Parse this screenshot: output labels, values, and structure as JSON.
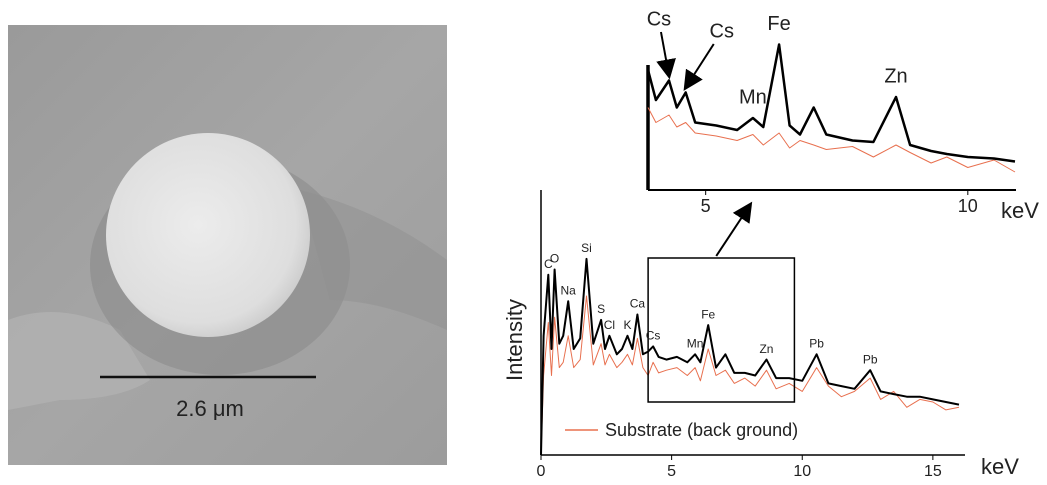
{
  "image": {
    "scale_bar_label": "2.6 μm"
  },
  "chart_data": [
    {
      "type": "line",
      "y_label": "Intensity",
      "x_label": "keV",
      "xlim": [
        0,
        16
      ],
      "xticks": [
        0,
        5,
        10,
        15
      ],
      "ylim": [
        0,
        100
      ],
      "x": [
        0,
        0.1,
        0.28,
        0.4,
        0.52,
        0.7,
        0.85,
        1.04,
        1.25,
        1.5,
        1.74,
        2.0,
        2.3,
        2.45,
        2.62,
        2.9,
        3.1,
        3.31,
        3.5,
        3.69,
        3.9,
        4.1,
        4.29,
        4.5,
        4.8,
        5.2,
        5.6,
        5.9,
        6.1,
        6.4,
        6.7,
        7.06,
        7.4,
        7.8,
        8.2,
        8.63,
        9.0,
        9.5,
        10.0,
        10.55,
        11.0,
        11.5,
        12.0,
        12.6,
        13.0,
        13.5,
        14.0,
        14.5,
        15.0,
        15.5,
        16.0
      ],
      "series": [
        {
          "name": "Substrate (back ground)",
          "color": "#e8704f",
          "values": [
            0,
            30,
            50,
            30,
            52,
            33,
            35,
            45,
            33,
            36,
            60,
            34,
            42,
            34,
            38,
            33,
            35,
            38,
            34,
            44,
            33,
            30,
            35,
            31,
            32,
            33,
            30,
            33,
            28,
            40,
            30,
            32,
            27,
            29,
            26,
            32,
            25,
            27,
            24,
            33,
            26,
            22,
            24,
            29,
            21,
            24,
            18,
            21,
            20,
            17,
            18
          ]
        },
        {
          "color": "#000000",
          "values": [
            0,
            45,
            68,
            40,
            70,
            42,
            45,
            58,
            40,
            44,
            74,
            42,
            51,
            40,
            45,
            38,
            40,
            45,
            40,
            53,
            38,
            39,
            41,
            37,
            36,
            37,
            35,
            38,
            35,
            49,
            33,
            38,
            31,
            31,
            30,
            36,
            29,
            29,
            28,
            38,
            27,
            26,
            25,
            32,
            24,
            23,
            22,
            22,
            21,
            20,
            19
          ]
        }
      ],
      "zoom_range": [
        4.1,
        9.7
      ],
      "annotations": [
        {
          "text": "C",
          "x": 0.28
        },
        {
          "text": "O",
          "x": 0.52
        },
        {
          "text": "Na",
          "x": 1.04
        },
        {
          "text": "Si",
          "x": 1.74
        },
        {
          "text": "S",
          "x": 2.3
        },
        {
          "text": "Cl",
          "x": 2.62
        },
        {
          "text": "K",
          "x": 3.31
        },
        {
          "text": "Ca",
          "x": 3.69
        },
        {
          "text": "Cs",
          "x": 4.29
        },
        {
          "text": "Mn",
          "x": 5.9
        },
        {
          "text": "Fe",
          "x": 6.4
        },
        {
          "text": "Zn",
          "x": 8.63
        },
        {
          "text": "Pb",
          "x": 10.55
        },
        {
          "text": "Pb",
          "x": 12.6
        }
      ]
    },
    {
      "type": "line",
      "x_label": "keV",
      "xlim": [
        3.9,
        10.9
      ],
      "xticks": [
        5,
        10
      ],
      "ylim": [
        0,
        100
      ],
      "x": [
        3.9,
        4.05,
        4.3,
        4.45,
        4.62,
        4.8,
        5.2,
        5.6,
        5.9,
        6.1,
        6.4,
        6.6,
        6.8,
        7.06,
        7.3,
        7.8,
        8.2,
        8.63,
        8.9,
        9.3,
        9.6,
        10.0,
        10.5,
        10.9
      ],
      "series": [
        {
          "color": "#e8704f",
          "values": [
            55,
            45,
            50,
            42,
            45,
            38,
            36,
            33,
            37,
            30,
            38,
            28,
            33,
            30,
            27,
            29,
            22,
            30,
            25,
            18,
            22,
            15,
            20,
            12
          ]
        },
        {
          "color": "#000000",
          "values": [
            80,
            60,
            73,
            55,
            65,
            45,
            43,
            40,
            48,
            42,
            97,
            43,
            37,
            55,
            37,
            33,
            32,
            62,
            30,
            26,
            24,
            22,
            21,
            19
          ]
        }
      ],
      "annotations": [
        {
          "text": "Cs",
          "x": 4.3,
          "arrow": true
        },
        {
          "text": "Cs",
          "x": 4.62,
          "arrow": true
        },
        {
          "text": "Mn",
          "x": 5.9
        },
        {
          "text": "Fe",
          "x": 6.4
        },
        {
          "text": "Zn",
          "x": 8.63
        }
      ]
    }
  ]
}
